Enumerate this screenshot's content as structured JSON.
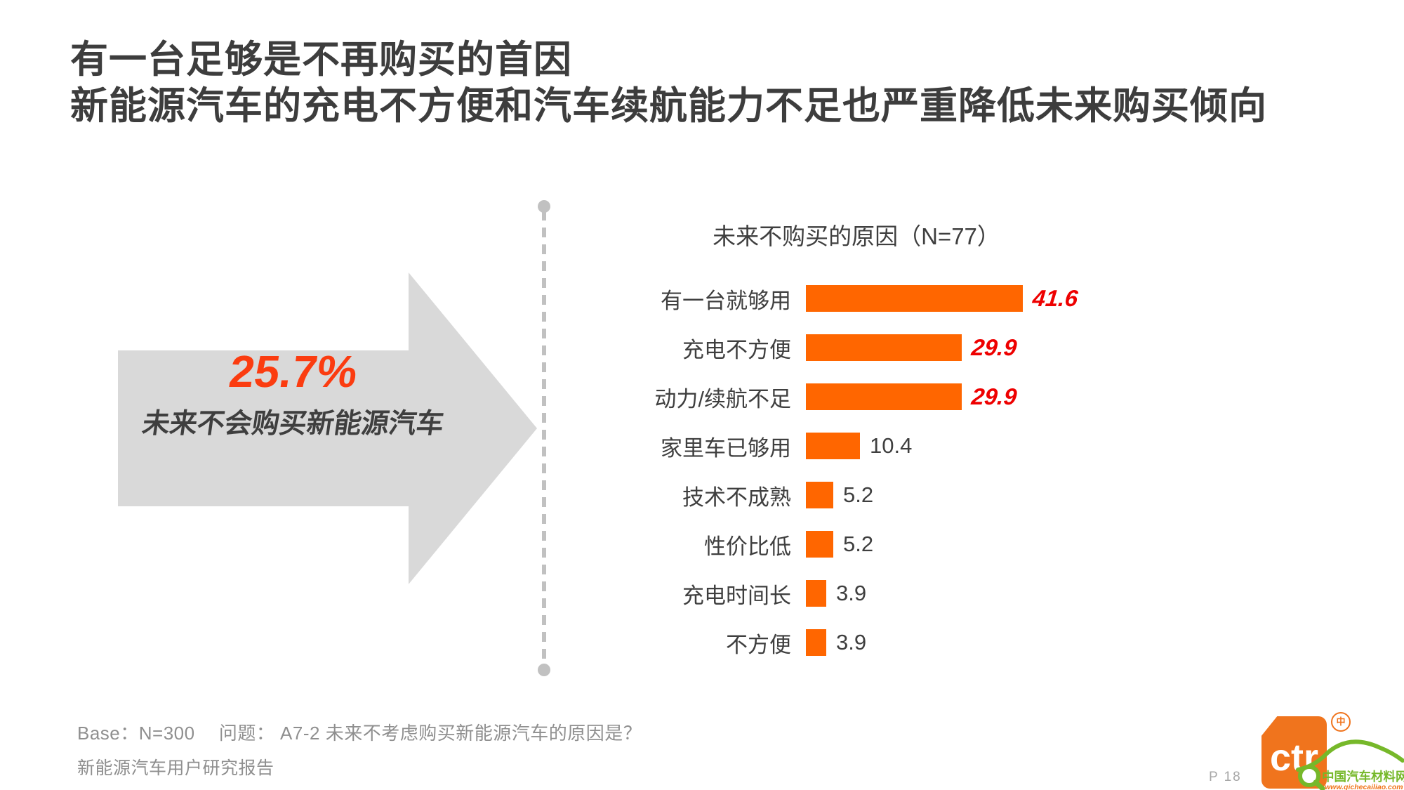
{
  "page": {
    "title_line1": "有一台足够是不再购买的首因",
    "title_line2": "新能源汽车的充电不方便和汽车续航能力不足也严重降低未来购买倾向",
    "footer_base": "Base：N=300　 问题： A7-2 未来不考虑购买新能源汽车的原因是？",
    "footer_report": "新能源汽车用户研究报告",
    "page_number": "P 18"
  },
  "highlight": {
    "percent": "25.7%",
    "caption": "未来不会购买新能源汽车"
  },
  "chart_data": {
    "type": "bar",
    "orientation": "horizontal",
    "title": "未来不购买的原因（N=77）",
    "categories": [
      "有一台就够用",
      "充电不方便",
      "动力/续航不足",
      "家里车已够用",
      "技术不成熟",
      "性价比低",
      "充电时间长",
      "不方便"
    ],
    "values": [
      41.6,
      29.9,
      29.9,
      10.4,
      5.2,
      5.2,
      3.9,
      3.9
    ],
    "emphasized": [
      true,
      true,
      true,
      false,
      false,
      false,
      false,
      false
    ],
    "xlim": [
      0,
      45
    ],
    "grid": false,
    "legend": false,
    "bar_color": "#ff6600",
    "emphasis_value_color": "#ee0000",
    "value_color": "#3f3f3f"
  },
  "logo": {
    "ctr_text": "ctr",
    "registered_mark": "中",
    "watermark_site_name": "中国汽车材料网",
    "watermark_site_url": "www.qichecailiao.com",
    "logo_color": "#f0741d",
    "watermark_green": "#76b82a",
    "watermark_orange": "#f07318"
  }
}
